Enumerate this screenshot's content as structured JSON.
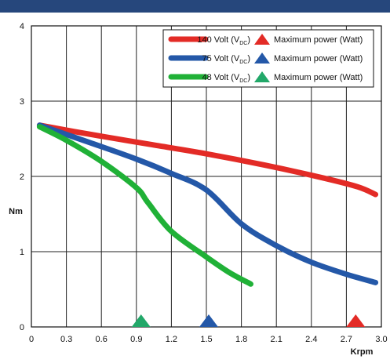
{
  "chart_data": {
    "type": "line",
    "xlabel": "Krpm",
    "ylabel": "Nm",
    "xlim": [
      0,
      3.0
    ],
    "ylim": [
      0,
      4
    ],
    "x_ticks": [
      "0",
      "0.3",
      "0.6",
      "0.9",
      "1.2",
      "1.5",
      "1.8",
      "2.1",
      "2.4",
      "2.7",
      "3.0"
    ],
    "y_ticks": [
      "0",
      "1",
      "2",
      "3",
      "4"
    ],
    "grid": true,
    "legend_position": "top-right",
    "series": [
      {
        "name": "140 Volt (V",
        "name_sub": "DC",
        "color": "#e32b26",
        "x": [
          0.07,
          0.5,
          1.0,
          1.5,
          2.0,
          2.5,
          2.8,
          2.95
        ],
        "y": [
          2.68,
          2.56,
          2.43,
          2.3,
          2.15,
          1.98,
          1.86,
          1.76
        ]
      },
      {
        "name": "75 Volt (V",
        "name_sub": "DC",
        "color": "#2458a8",
        "x": [
          0.07,
          0.5,
          0.9,
          1.2,
          1.5,
          1.8,
          2.1,
          2.4,
          2.7,
          2.95
        ],
        "y": [
          2.68,
          2.45,
          2.23,
          2.04,
          1.82,
          1.37,
          1.08,
          0.86,
          0.7,
          0.59
        ]
      },
      {
        "name": "48 Volt (V",
        "name_sub": "DC",
        "color": "#20b137",
        "x": [
          0.07,
          0.3,
          0.6,
          0.9,
          1.0,
          1.2,
          1.5,
          1.7,
          1.88
        ],
        "y": [
          2.66,
          2.48,
          2.2,
          1.85,
          1.65,
          1.27,
          0.93,
          0.72,
          0.57
        ]
      }
    ],
    "max_power_markers": [
      {
        "label": "Maximum power (Watt)",
        "x": 0.94,
        "color": "#22a869"
      },
      {
        "label": "Maximum power (Watt)",
        "x": 1.52,
        "color": "#2458a8"
      },
      {
        "label": "Maximum power (Watt)",
        "x": 2.78,
        "color": "#e32b26"
      }
    ]
  }
}
